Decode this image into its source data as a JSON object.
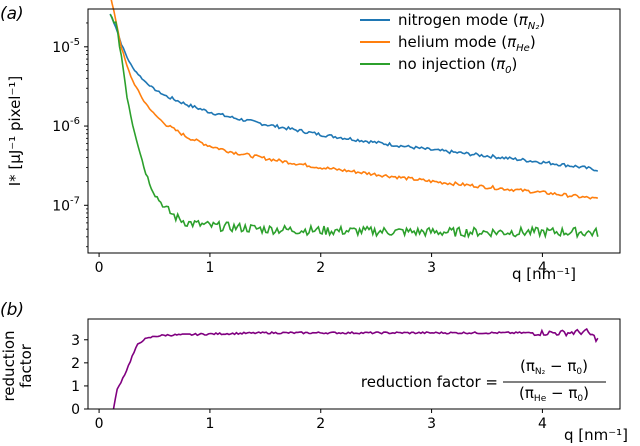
{
  "chart_data": [
    {
      "panel_label": "(a)",
      "type": "line",
      "yscale": "log",
      "xlim": [
        -0.1,
        4.7
      ],
      "ylim": [
        2.5e-08,
        3e-05
      ],
      "xticks": [
        "0",
        "1",
        "2",
        "3",
        "4"
      ],
      "yticks": [
        {
          "base": "10",
          "exp": "-5"
        },
        {
          "base": "10",
          "exp": "-6"
        },
        {
          "base": "10",
          "exp": "-7"
        }
      ],
      "xlabel": "q [nm⁻¹]",
      "ylabel": "I* [µJ⁻¹ pixel⁻¹]",
      "legend": "top-right",
      "series": [
        {
          "name": "nitrogen mode",
          "symbol_main": "π",
          "symbol_sub": "N₂",
          "color": "#1f77b4",
          "x": [
            0.1,
            0.15,
            0.2,
            0.25,
            0.3,
            0.4,
            0.5,
            0.6,
            0.8,
            1.0,
            1.2,
            1.5,
            2.0,
            2.5,
            3.0,
            3.5,
            4.0,
            4.3,
            4.5
          ],
          "y": [
            2.6e-05,
            1.8e-05,
            1.1e-05,
            7.5e-06,
            5.5e-06,
            3.8e-06,
            2.9e-06,
            2.4e-06,
            1.85e-06,
            1.5e-06,
            1.28e-06,
            1.05e-06,
            7.8e-07,
            6.2e-07,
            5e-07,
            4.2e-07,
            3.5e-07,
            3.1e-07,
            2.8e-07
          ]
        },
        {
          "name": "helium mode",
          "symbol_main": "π",
          "symbol_sub": "He",
          "color": "#ff7f0e",
          "x": [
            0.1,
            0.15,
            0.2,
            0.25,
            0.3,
            0.4,
            0.5,
            0.6,
            0.8,
            1.0,
            1.2,
            1.5,
            2.0,
            2.5,
            3.0,
            3.5,
            4.0,
            4.3,
            4.5
          ],
          "y": [
            4.5e-05,
            2.2e-05,
            1e-05,
            5.8e-06,
            3.8e-06,
            2.1e-06,
            1.4e-06,
            1.05e-06,
            7.2e-07,
            5.6e-07,
            4.7e-07,
            3.9e-07,
            3e-07,
            2.45e-07,
            2e-07,
            1.7e-07,
            1.45e-07,
            1.3e-07,
            1.2e-07
          ]
        },
        {
          "name": "no injection",
          "symbol_main": "π",
          "symbol_sub": "0",
          "color": "#2ca02c",
          "x": [
            0.1,
            0.15,
            0.2,
            0.25,
            0.3,
            0.35,
            0.4,
            0.45,
            0.5,
            0.6,
            0.7,
            0.8,
            1.0,
            1.5,
            2.0,
            2.5,
            3.0,
            3.5,
            4.0,
            4.3,
            4.5
          ],
          "y": [
            2.5e-05,
            2e-05,
            8e-06,
            2.5e-06,
            1.1e-06,
            6e-07,
            3.2e-07,
            2e-07,
            1.4e-07,
            9e-08,
            7e-08,
            6e-08,
            5.5e-08,
            5e-08,
            4.8e-08,
            4.7e-08,
            4.6e-08,
            4.6e-08,
            4.6e-08,
            4.6e-08,
            4.5e-08
          ]
        }
      ]
    },
    {
      "panel_label": "(b)",
      "type": "line",
      "xlim": [
        -0.1,
        4.7
      ],
      "ylim": [
        0,
        3.9
      ],
      "xticks": [
        "0",
        "1",
        "2",
        "3",
        "4"
      ],
      "yticks": [
        "0",
        "1",
        "2",
        "3"
      ],
      "xlabel": "q [nm⁻¹]",
      "ylabel_lines": [
        "reduction",
        "factor"
      ],
      "annotation": {
        "lhs": "reduction factor =",
        "numerator": [
          "(π",
          "N₂",
          " − π",
          "0",
          ")"
        ],
        "denominator": [
          "(π",
          "He",
          " − π",
          "0",
          ")"
        ]
      },
      "series": [
        {
          "name": "reduction factor",
          "color": "#800080",
          "x": [
            0.13,
            0.16,
            0.2,
            0.25,
            0.3,
            0.35,
            0.4,
            0.5,
            0.6,
            0.8,
            1.0,
            1.5,
            2.0,
            2.5,
            3.0,
            3.5,
            4.0,
            4.2,
            4.4,
            4.5
          ],
          "y": [
            0.0,
            0.8,
            1.2,
            1.7,
            2.3,
            2.8,
            3.0,
            3.15,
            3.2,
            3.22,
            3.25,
            3.3,
            3.3,
            3.3,
            3.3,
            3.3,
            3.3,
            3.3,
            3.35,
            3.0
          ]
        }
      ]
    }
  ]
}
